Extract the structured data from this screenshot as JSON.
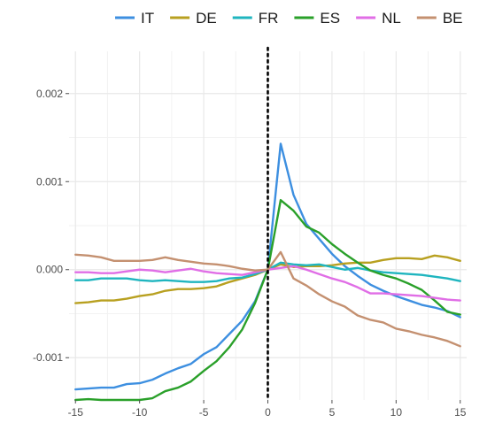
{
  "chart_data": {
    "type": "line",
    "title": "",
    "xlabel": "",
    "ylabel": "",
    "xlim": [
      -15.5,
      15.5
    ],
    "ylim": [
      -0.00148,
      0.00248
    ],
    "x_ticks": [
      -15,
      -10,
      -5,
      0,
      5,
      10,
      15
    ],
    "x_tick_labels": [
      "-15",
      "-10",
      "-5",
      "0",
      "5",
      "10",
      "15"
    ],
    "y_ticks": [
      -0.001,
      0.0,
      0.001,
      0.002
    ],
    "y_tick_labels": [
      "-0.001",
      "0.000",
      "0.001",
      "0.002"
    ],
    "grid": true,
    "legend_position": "top",
    "vline": {
      "x": 0,
      "style": "dotted"
    },
    "x": [
      -15,
      -14,
      -13,
      -12,
      -11,
      -10,
      -9,
      -8,
      -7,
      -6,
      -5,
      -4,
      -3,
      -2,
      -1,
      0,
      1,
      2,
      3,
      4,
      5,
      6,
      7,
      8,
      9,
      10,
      11,
      12,
      13,
      14,
      15
    ],
    "series": [
      {
        "name": "IT",
        "color": "#3d8fe0",
        "values": [
          -0.00136,
          -0.00135,
          -0.00134,
          -0.00134,
          -0.0013,
          -0.00129,
          -0.00125,
          -0.00118,
          -0.00112,
          -0.00107,
          -0.00096,
          -0.00088,
          -0.00073,
          -0.00058,
          -0.00036,
          0.0,
          0.00143,
          0.00085,
          0.00052,
          0.00035,
          0.00018,
          4e-05,
          -7e-05,
          -0.00017,
          -0.00024,
          -0.0003,
          -0.00035,
          -0.0004,
          -0.00043,
          -0.00047,
          -0.00054
        ]
      },
      {
        "name": "DE",
        "color": "#b8a020",
        "values": [
          -0.00038,
          -0.00037,
          -0.00035,
          -0.00035,
          -0.00033,
          -0.0003,
          -0.00028,
          -0.00024,
          -0.00022,
          -0.00022,
          -0.00021,
          -0.00019,
          -0.00014,
          -0.0001,
          -6e-05,
          0.0,
          6e-05,
          3e-05,
          4e-05,
          4e-05,
          5e-05,
          7e-05,
          8e-05,
          8e-05,
          0.00011,
          0.00013,
          0.00013,
          0.00012,
          0.00016,
          0.00014,
          0.0001
        ]
      },
      {
        "name": "FR",
        "color": "#1fb5bf",
        "values": [
          -0.00012,
          -0.00012,
          -0.0001,
          -0.0001,
          -0.0001,
          -0.00012,
          -0.00013,
          -0.00012,
          -0.00013,
          -0.00014,
          -0.00014,
          -0.00013,
          -0.0001,
          -9e-05,
          -5e-05,
          0.0,
          8e-05,
          6e-05,
          5e-05,
          6e-05,
          3e-05,
          0.0,
          2e-05,
          -1e-05,
          -3e-05,
          -4e-05,
          -5e-05,
          -6e-05,
          -8e-05,
          -0.0001,
          -0.00013
        ]
      },
      {
        "name": "ES",
        "color": "#2aa02a",
        "values": [
          -0.00148,
          -0.00147,
          -0.00148,
          -0.00148,
          -0.00148,
          -0.00148,
          -0.00146,
          -0.00138,
          -0.00134,
          -0.00127,
          -0.00115,
          -0.00104,
          -0.00088,
          -0.00068,
          -0.00038,
          0.0,
          0.00079,
          0.00067,
          0.00049,
          0.00042,
          0.00029,
          0.00018,
          8e-05,
          -1e-05,
          -6e-05,
          -0.0001,
          -0.00016,
          -0.00023,
          -0.00035,
          -0.00048,
          -0.00051
        ]
      },
      {
        "name": "NL",
        "color": "#e06ee6",
        "values": [
          -3e-05,
          -3e-05,
          -4e-05,
          -4e-05,
          -2e-05,
          0.0,
          -1e-05,
          -3e-05,
          -1e-05,
          1e-05,
          -2e-05,
          -4e-05,
          -5e-05,
          -6e-05,
          -3e-05,
          0.0,
          2e-05,
          4e-05,
          -0.0,
          -5e-05,
          -0.0001,
          -0.00014,
          -0.0002,
          -0.00027,
          -0.00027,
          -0.00028,
          -0.00029,
          -0.0003,
          -0.00032,
          -0.00034,
          -0.00035
        ]
      },
      {
        "name": "BE",
        "color": "#c49070",
        "values": [
          0.00017,
          0.00016,
          0.00014,
          0.0001,
          0.0001,
          0.0001,
          0.00011,
          0.00014,
          0.00011,
          9e-05,
          7e-05,
          6e-05,
          4e-05,
          1e-05,
          -1e-05,
          0.0,
          0.0002,
          -0.0001,
          -0.00018,
          -0.00028,
          -0.00036,
          -0.00042,
          -0.00052,
          -0.00057,
          -0.0006,
          -0.00067,
          -0.0007,
          -0.00074,
          -0.00077,
          -0.00081,
          -0.00087
        ]
      }
    ]
  },
  "legend": {
    "items": [
      {
        "label": "IT",
        "color": "#3d8fe0"
      },
      {
        "label": "DE",
        "color": "#b8a020"
      },
      {
        "label": "FR",
        "color": "#1fb5bf"
      },
      {
        "label": "ES",
        "color": "#2aa02a"
      },
      {
        "label": "NL",
        "color": "#e06ee6"
      },
      {
        "label": "BE",
        "color": "#c49070"
      }
    ]
  }
}
